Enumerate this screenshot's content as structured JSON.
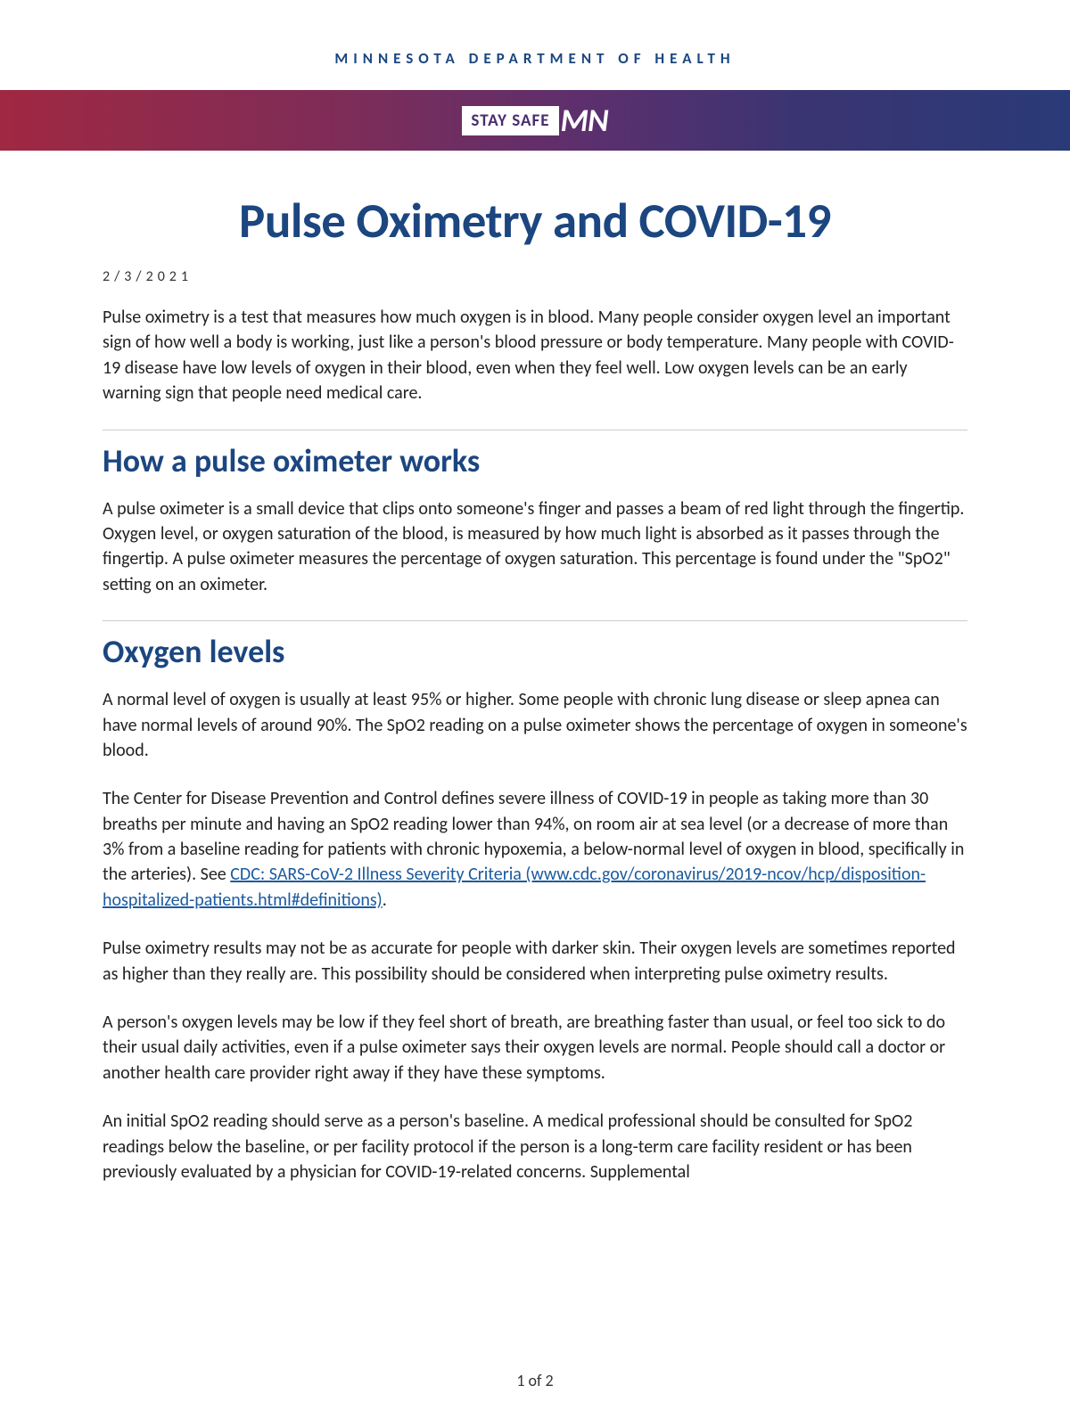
{
  "header": {
    "department": "MINNESOTA DEPARTMENT OF HEALTH",
    "banner_text": "STAY SAFE",
    "banner_state": "MN"
  },
  "document": {
    "title": "Pulse Oximetry and COVID-19",
    "date": "2/3/2021",
    "intro": "Pulse oximetry is a test that measures how much oxygen is in blood. Many people consider oxygen level an important sign of how well a body is working, just like a person's blood pressure or body temperature. Many people with COVID-19 disease have low levels of oxygen in their blood, even when they feel well. Low oxygen levels can be an early warning sign that people need medical care.",
    "section1": {
      "heading": "How a pulse oximeter works",
      "p1": "A pulse oximeter is a small device that clips onto someone's finger and passes a beam of red light through the fingertip. Oxygen level, or oxygen saturation of the blood, is measured by how much light is absorbed as it passes through the fingertip. A pulse oximeter measures the percentage of oxygen saturation. This percentage is found under the \"SpO2\" setting on an oximeter."
    },
    "section2": {
      "heading": "Oxygen levels",
      "p1": "A normal level of oxygen is usually at least 95% or higher. Some people with chronic lung disease or sleep apnea can have normal levels of around 90%. The SpO2 reading on a pulse oximeter shows the percentage of oxygen in someone's blood.",
      "p2_before": "The Center for Disease Prevention and Control defines severe illness of COVID-19 in people as taking more than 30 breaths per minute and having an SpO2 reading lower than 94%, on room air at sea level (or a decrease of more than 3% from a baseline reading for patients with chronic hypoxemia, a below-normal level of oxygen in blood, specifically in the arteries). See ",
      "p2_link": "CDC: SARS-CoV-2 Illness Severity Criteria (www.cdc.gov/coronavirus/2019-ncov/hcp/disposition-hospitalized-patients.html#definitions)",
      "p2_after": ".",
      "p3": "Pulse oximetry results may not be as accurate for people with darker skin. Their oxygen levels are sometimes reported as higher than they really are. This possibility should be considered when interpreting pulse oximetry results.",
      "p4": "A person's oxygen levels may be low if they feel short of breath, are breathing faster than usual, or feel too sick to do their usual daily activities, even if a pulse oximeter says their oxygen levels are normal. People should call a doctor or another health care provider right away if they have these symptoms.",
      "p5": "An initial SpO2 reading should serve as a person's baseline. A medical professional should be consulted for SpO2 readings below the baseline, or per facility protocol if the person is a long-term care facility resident or has been previously evaluated by a physician for COVID-19-related concerns. Supplemental"
    },
    "page_number": "1 of 2"
  },
  "colors": {
    "heading_blue": "#1b4680",
    "link_blue": "#1b5a9e",
    "banner_gradient_start": "#a02842",
    "banner_gradient_end": "#2a3a78",
    "text": "#222222",
    "rule": "#cccccc",
    "background": "#ffffff"
  }
}
